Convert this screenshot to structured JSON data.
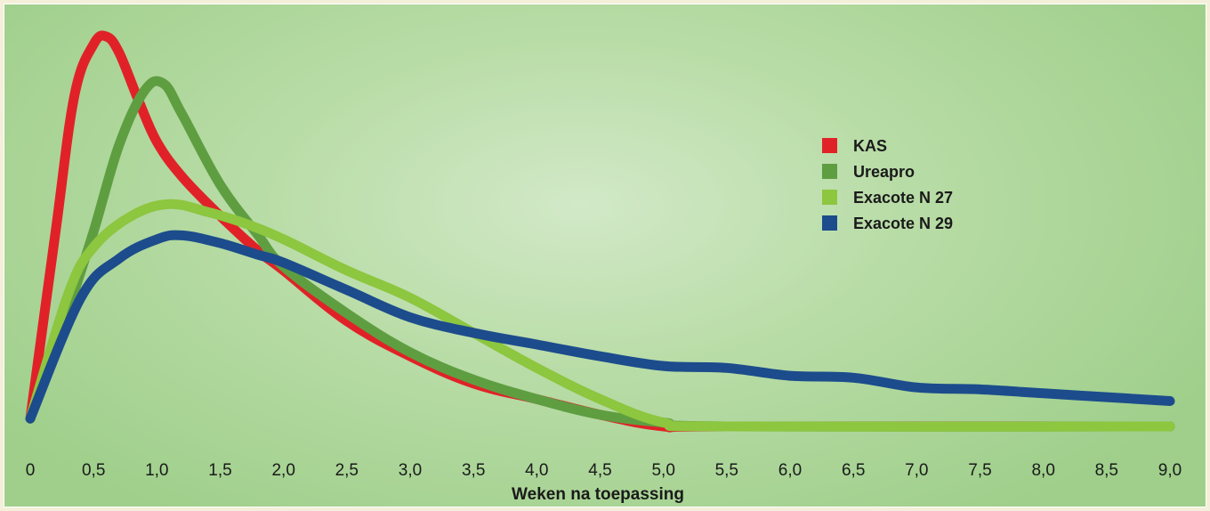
{
  "chart_data": {
    "type": "line",
    "title": "",
    "xlabel": "Weken na toepassing",
    "ylabel": "",
    "xlim": [
      0,
      9
    ],
    "ylim": [
      0,
      1
    ],
    "grid": false,
    "legend_position": "right",
    "x_ticks": [
      0,
      0.5,
      1,
      1.5,
      2,
      2.5,
      3,
      3.5,
      4,
      4.5,
      5,
      5.5,
      6,
      6.5,
      7,
      7.5,
      8,
      8.5,
      9
    ],
    "x_tick_labels": [
      "0",
      "0,5",
      "1,0",
      "1,5",
      "2,0",
      "2,5",
      "3,0",
      "3,5",
      "4,0",
      "4,5",
      "5,0",
      "5,5",
      "6,0",
      "6,5",
      "7,0",
      "7,5",
      "8,0",
      "8,5",
      "9,0"
    ],
    "series": [
      {
        "name": "KAS",
        "color": "#e02228",
        "points": [
          [
            0,
            0.02
          ],
          [
            0.2,
            0.5
          ],
          [
            0.35,
            0.85
          ],
          [
            0.5,
            0.98
          ],
          [
            0.6,
            1.0
          ],
          [
            0.7,
            0.96
          ],
          [
            0.85,
            0.84
          ],
          [
            1.0,
            0.73
          ],
          [
            1.2,
            0.64
          ],
          [
            1.5,
            0.54
          ],
          [
            1.8,
            0.45
          ],
          [
            2.0,
            0.4
          ],
          [
            2.5,
            0.27
          ],
          [
            3.0,
            0.18
          ],
          [
            3.5,
            0.11
          ],
          [
            4.0,
            0.07
          ],
          [
            4.5,
            0.03
          ],
          [
            5.0,
            0.0
          ],
          [
            5.5,
            0.0
          ],
          [
            9.0,
            0.0
          ]
        ]
      },
      {
        "name": "Ureapro",
        "color": "#5e9e41",
        "points": [
          [
            0,
            0.02
          ],
          [
            0.3,
            0.3
          ],
          [
            0.5,
            0.5
          ],
          [
            0.7,
            0.72
          ],
          [
            0.9,
            0.86
          ],
          [
            1.05,
            0.88
          ],
          [
            1.2,
            0.8
          ],
          [
            1.5,
            0.62
          ],
          [
            1.8,
            0.49
          ],
          [
            2.0,
            0.41
          ],
          [
            2.5,
            0.29
          ],
          [
            3.0,
            0.19
          ],
          [
            3.5,
            0.12
          ],
          [
            4.0,
            0.07
          ],
          [
            4.5,
            0.03
          ],
          [
            5.0,
            0.01
          ],
          [
            5.5,
            0.0
          ],
          [
            9.0,
            0.0
          ]
        ]
      },
      {
        "name": "Exacote N 27",
        "color": "#8dc63f",
        "points": [
          [
            0,
            0.02
          ],
          [
            0.3,
            0.34
          ],
          [
            0.5,
            0.46
          ],
          [
            0.8,
            0.54
          ],
          [
            1.1,
            0.57
          ],
          [
            1.4,
            0.55
          ],
          [
            1.7,
            0.52
          ],
          [
            2.0,
            0.48
          ],
          [
            2.5,
            0.4
          ],
          [
            3.0,
            0.33
          ],
          [
            3.5,
            0.24
          ],
          [
            4.0,
            0.15
          ],
          [
            4.5,
            0.07
          ],
          [
            5.0,
            0.01
          ],
          [
            5.5,
            0.0
          ],
          [
            9.0,
            0.0
          ]
        ]
      },
      {
        "name": "Exacote N 29",
        "color": "#1c4c8c",
        "points": [
          [
            0,
            0.02
          ],
          [
            0.4,
            0.33
          ],
          [
            0.7,
            0.43
          ],
          [
            1.0,
            0.48
          ],
          [
            1.2,
            0.49
          ],
          [
            1.5,
            0.47
          ],
          [
            1.8,
            0.44
          ],
          [
            2.0,
            0.42
          ],
          [
            2.5,
            0.35
          ],
          [
            3.0,
            0.28
          ],
          [
            3.5,
            0.24
          ],
          [
            4.0,
            0.21
          ],
          [
            4.5,
            0.18
          ],
          [
            5.0,
            0.155
          ],
          [
            5.5,
            0.15
          ],
          [
            6.0,
            0.13
          ],
          [
            6.5,
            0.125
          ],
          [
            7.0,
            0.1
          ],
          [
            7.5,
            0.095
          ],
          [
            8.0,
            0.085
          ],
          [
            8.5,
            0.075
          ],
          [
            9.0,
            0.065
          ]
        ]
      }
    ]
  }
}
